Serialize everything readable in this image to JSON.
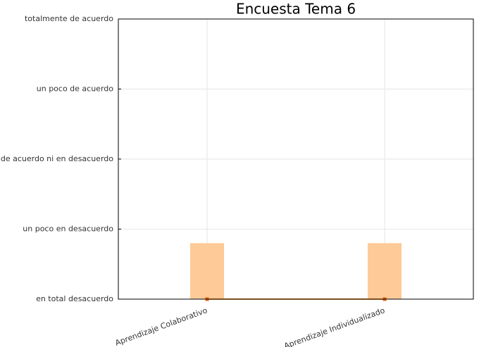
{
  "chart_data": {
    "type": "bar",
    "title": "Encuesta Tema 6",
    "categories": [
      "Aprendizaje Colaborativo",
      "Aprendizaje Individualizado"
    ],
    "series": [
      {
        "type": "bar",
        "color": "#fdca98",
        "values": [
          1.8,
          1.8
        ]
      },
      {
        "type": "line",
        "color": "#f5a040",
        "marker_color": "#e8600a",
        "values": [
          1,
          1
        ]
      }
    ],
    "ylim": [
      1,
      5
    ],
    "yticks": [
      {
        "value": 1,
        "label": "en total desacuerdo"
      },
      {
        "value": 2,
        "label": "un poco en desacuerdo"
      },
      {
        "value": 3,
        "label": "ni de acuerdo ni en desacuerdo"
      },
      {
        "value": 4,
        "label": "un poco de acuerdo"
      },
      {
        "value": 5,
        "label": "totalmente de acuerdo"
      }
    ],
    "grid": true
  }
}
